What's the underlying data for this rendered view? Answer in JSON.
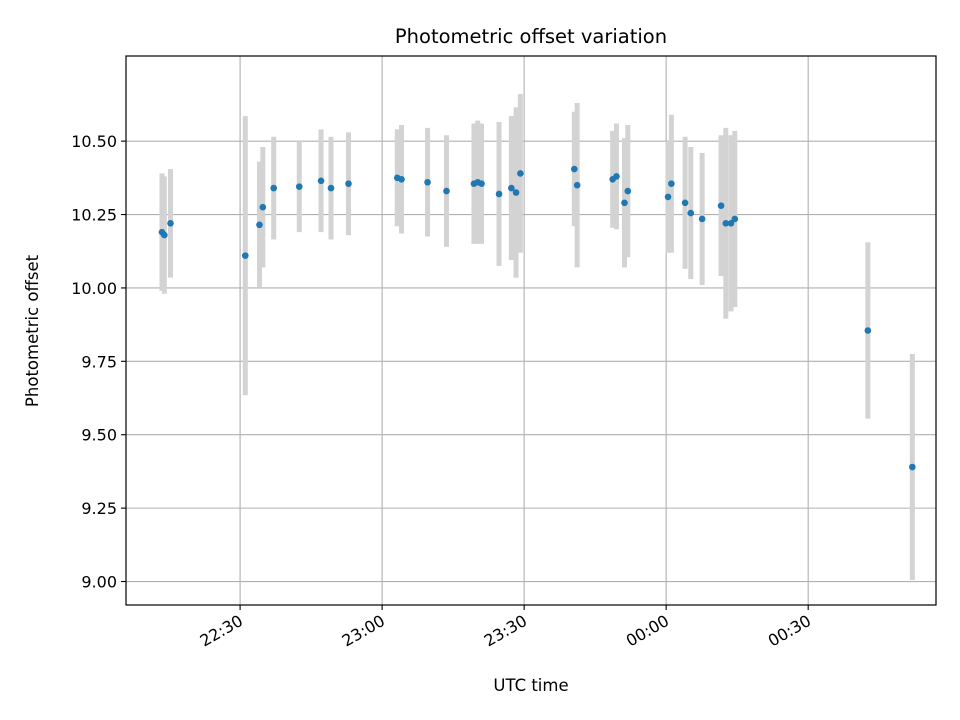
{
  "chart_data": {
    "type": "scatter",
    "title": "Photometric offset variation",
    "xlabel": "UTC time",
    "ylabel": "Photometric offset",
    "grid": true,
    "x_unit": "minutes since 22:00 UTC",
    "xlim": [
      5.9,
      177.0
    ],
    "ylim": [
      8.92,
      10.79
    ],
    "x_ticks": [
      {
        "value": 30,
        "label": "22:30"
      },
      {
        "value": 60,
        "label": "23:00"
      },
      {
        "value": 90,
        "label": "23:30"
      },
      {
        "value": 120,
        "label": "00:00"
      },
      {
        "value": 150,
        "label": "00:30"
      }
    ],
    "y_ticks": [
      {
        "value": 9.0,
        "label": "9.00"
      },
      {
        "value": 9.25,
        "label": "9.25"
      },
      {
        "value": 9.5,
        "label": "9.50"
      },
      {
        "value": 9.75,
        "label": "9.75"
      },
      {
        "value": 10.0,
        "label": "10.00"
      },
      {
        "value": 10.25,
        "label": "10.25"
      },
      {
        "value": 10.5,
        "label": "10.50"
      }
    ],
    "point_color": "#1f77b4",
    "errorbar_color": "#d3d3d3",
    "points": [
      {
        "x": 13.5,
        "y": 10.19,
        "err": 0.2
      },
      {
        "x": 14.0,
        "y": 10.18,
        "err": 0.2
      },
      {
        "x": 15.3,
        "y": 10.22,
        "err": 0.185
      },
      {
        "x": 31.1,
        "y": 10.11,
        "err": 0.475
      },
      {
        "x": 34.1,
        "y": 10.215,
        "err": 0.215
      },
      {
        "x": 34.8,
        "y": 10.275,
        "err": 0.205
      },
      {
        "x": 37.1,
        "y": 10.34,
        "err": 0.175
      },
      {
        "x": 42.5,
        "y": 10.345,
        "err": 0.155
      },
      {
        "x": 47.1,
        "y": 10.365,
        "err": 0.175
      },
      {
        "x": 49.2,
        "y": 10.34,
        "err": 0.175
      },
      {
        "x": 52.9,
        "y": 10.355,
        "err": 0.175
      },
      {
        "x": 63.2,
        "y": 10.375,
        "err": 0.165
      },
      {
        "x": 64.1,
        "y": 10.37,
        "err": 0.185
      },
      {
        "x": 69.6,
        "y": 10.36,
        "err": 0.185
      },
      {
        "x": 73.6,
        "y": 10.33,
        "err": 0.19
      },
      {
        "x": 79.4,
        "y": 10.355,
        "err": 0.205
      },
      {
        "x": 80.2,
        "y": 10.36,
        "err": 0.21
      },
      {
        "x": 81.0,
        "y": 10.355,
        "err": 0.205
      },
      {
        "x": 84.7,
        "y": 10.32,
        "err": 0.245
      },
      {
        "x": 87.3,
        "y": 10.34,
        "err": 0.245
      },
      {
        "x": 88.3,
        "y": 10.325,
        "err": 0.29
      },
      {
        "x": 89.2,
        "y": 10.39,
        "err": 0.27
      },
      {
        "x": 100.6,
        "y": 10.405,
        "err": 0.195
      },
      {
        "x": 101.2,
        "y": 10.35,
        "err": 0.28
      },
      {
        "x": 108.7,
        "y": 10.37,
        "err": 0.165
      },
      {
        "x": 109.5,
        "y": 10.38,
        "err": 0.18
      },
      {
        "x": 111.2,
        "y": 10.29,
        "err": 0.22
      },
      {
        "x": 111.9,
        "y": 10.33,
        "err": 0.225
      },
      {
        "x": 120.4,
        "y": 10.31,
        "err": 0.19
      },
      {
        "x": 121.1,
        "y": 10.355,
        "err": 0.235
      },
      {
        "x": 124.0,
        "y": 10.29,
        "err": 0.225
      },
      {
        "x": 125.2,
        "y": 10.255,
        "err": 0.225
      },
      {
        "x": 127.6,
        "y": 10.235,
        "err": 0.225
      },
      {
        "x": 131.6,
        "y": 10.28,
        "err": 0.24
      },
      {
        "x": 132.6,
        "y": 10.22,
        "err": 0.325
      },
      {
        "x": 133.7,
        "y": 10.22,
        "err": 0.3
      },
      {
        "x": 134.5,
        "y": 10.235,
        "err": 0.3
      },
      {
        "x": 162.6,
        "y": 9.855,
        "err": 0.3
      },
      {
        "x": 172.0,
        "y": 9.39,
        "err": 0.385
      }
    ]
  }
}
